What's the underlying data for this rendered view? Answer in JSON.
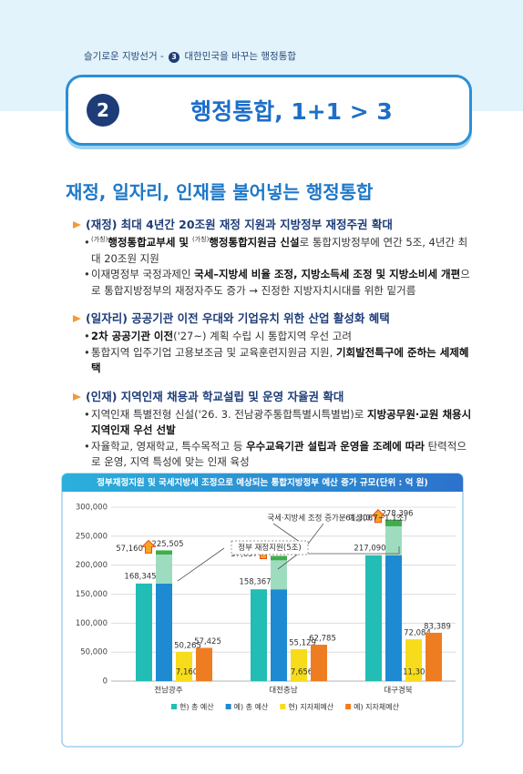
{
  "header": {
    "breadcrumb": {
      "lead": "슬기로운 지방선거 -",
      "step": "3",
      "topic": "대한민국을 바꾸는 행정통합"
    },
    "number": "2",
    "title": "행정통합, 1+1 > 3"
  },
  "section": {
    "title": "재정, 일자리, 인재를 불어넣는 행정통합",
    "items": [
      {
        "heading": "(재정) 최대 4년간 20조원 재정 지원과 지방정부 재정주권 확대",
        "bullets": [
          [
            {
              "text": "(가칭)",
              "style": "sup"
            },
            {
              "text": "행정통합교부세 및 ",
              "style": "bold"
            },
            {
              "text": "(가칭)",
              "style": "sup"
            },
            {
              "text": "행정통합지원금 신설",
              "style": "bold"
            },
            {
              "text": "로 통합지방정부에 연간 5조, 4년간 최대 20조원 지원"
            }
          ],
          [
            {
              "text": "이재명정부 국정과제인 "
            },
            {
              "text": "국세–지방세 비율 조정, 지방소득세 조정 및 지방소비세 개편",
              "style": "bold"
            },
            {
              "text": "으로 통합지방정부의 재정자주도 증가 → 진정한 지방자치시대를 위한 밑거름"
            }
          ]
        ]
      },
      {
        "heading": "(일자리) 공공기관 이전 우대와 기업유치 위한 산업 활성화 혜택",
        "bullets": [
          [
            {
              "text": "2차 공공기관 이전",
              "style": "bold"
            },
            {
              "text": "('27~) 계획 수립 시 통합지역 우선 고려"
            }
          ],
          [
            {
              "text": "통합지역 입주기업 고용보조금 및 교육훈련지원금 지원, "
            },
            {
              "text": "기회발전특구에 준하는 세제혜택",
              "style": "bold"
            }
          ]
        ]
      },
      {
        "heading": "(인재) 지역인재 채용과 학교설립 및 운영 자율권 확대",
        "bullets": [
          [
            {
              "text": "지역인재 특별전형 신설('26. 3. 전남광주통합특별시특별법)로 "
            },
            {
              "text": "지방공무원·교원 채용시 지역인재 우선 선발",
              "style": "bold"
            }
          ],
          [
            {
              "text": "자율학교, 영재학교, 특수목적고 등 "
            },
            {
              "text": "우수교육기관 설립과 운영을 조례에 따라",
              "style": "bold"
            },
            {
              "text": " 탄력적으로 운영, 지역 특성에 맞는 인재 육성"
            }
          ]
        ]
      }
    ]
  },
  "chart_data": {
    "type": "bar",
    "title": "정부재정지원 및 국세지방세 조정으로 예상되는 통합지방정부 예산 증가 규모(단위 : 억 원)",
    "categories": [
      "전남광주",
      "대전충남",
      "대구경북"
    ],
    "ylim": [
      0,
      300000
    ],
    "yticks": [
      0,
      {
        "value": 50000,
        "label": "50,000"
      },
      {
        "value": 100000,
        "label": "100,000"
      },
      {
        "value": 150000,
        "label": "150,000"
      },
      {
        "value": 200000,
        "label": "200,000"
      },
      {
        "value": 250000,
        "label": "250,000"
      },
      {
        "value": 300000,
        "label": "300,000"
      }
    ],
    "grid": true,
    "series": [
      {
        "name": "현) 총 예산",
        "color": "#22bdb5",
        "values": [
          168345,
          158367,
          217090
        ],
        "value_labels": [
          "168,345",
          "158,367",
          "217,090"
        ]
      },
      {
        "name": "예) 총 예산",
        "color": "#1d8ad2",
        "values": [
          225505,
          216024,
          278396
        ],
        "value_labels": [
          "225,505",
          "216,024",
          "278,396"
        ],
        "segments": [
          [
            168345,
            50000,
            7160
          ],
          [
            158367,
            50000,
            7657
          ],
          [
            217090,
            50000,
            11306
          ]
        ],
        "segment_colors": [
          "#1d8ad2",
          "#9edcc0",
          "#40ad4c"
        ],
        "increase": [
          57160,
          57657,
          61306
        ],
        "increase_labels": [
          "57,160",
          "57,657",
          "61,306"
        ]
      },
      {
        "name": "현) 지자체예산",
        "color": "#f7dc1b",
        "values": [
          50265,
          55129,
          72084
        ],
        "value_labels": [
          "50,265",
          "55,129",
          "72,084"
        ],
        "difference": [
          7160,
          7656,
          11305
        ],
        "difference_labels": [
          "7,160",
          "7,656",
          "11,305"
        ]
      },
      {
        "name": "예) 지자체예산",
        "color": "#ee7d22",
        "values": [
          57425,
          62785,
          83389
        ],
        "value_labels": [
          "57,425",
          "62,785",
          "83,389"
        ]
      }
    ],
    "annotations": [
      "국세·지방세 조정 증가분 예상(0.7~1.1조)",
      "정부 재정지원(5조)"
    ]
  }
}
